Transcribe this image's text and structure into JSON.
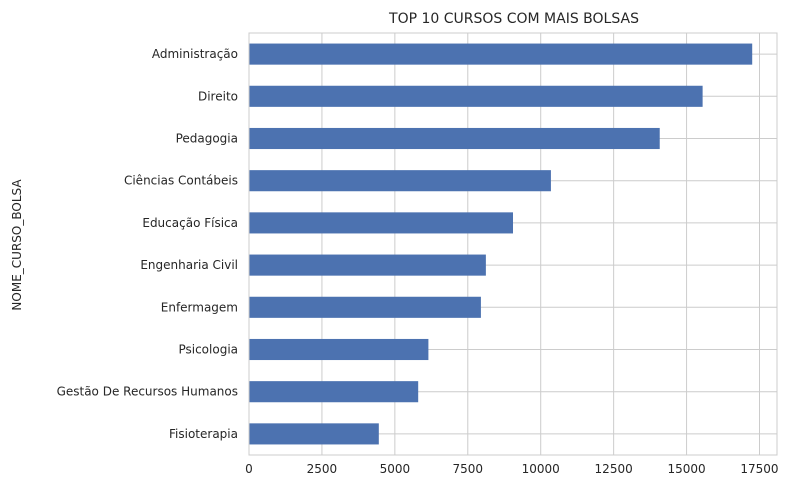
{
  "chart_data": {
    "type": "bar",
    "orientation": "horizontal",
    "title": "TOP 10 CURSOS COM MAIS BOLSAS",
    "xlabel": "",
    "ylabel": "NOME_CURSO_BOLSA",
    "categories": [
      "Administração",
      "Direito",
      "Pedagogia",
      "Ciências Contábeis",
      "Educação Física",
      "Engenharia Civil",
      "Enfermagem",
      "Psicologia",
      "Gestão De Recursos Humanos",
      "Fisioterapia"
    ],
    "values": [
      17250,
      15550,
      14080,
      10350,
      9050,
      8120,
      7950,
      6150,
      5800,
      4450
    ],
    "xlim": [
      0,
      18100
    ],
    "xticks": [
      0,
      2500,
      5000,
      7500,
      10000,
      12500,
      15000,
      17500
    ],
    "grid": true,
    "legend": "none",
    "bar_color": "#4c72b0",
    "grid_color": "#cccccc"
  }
}
